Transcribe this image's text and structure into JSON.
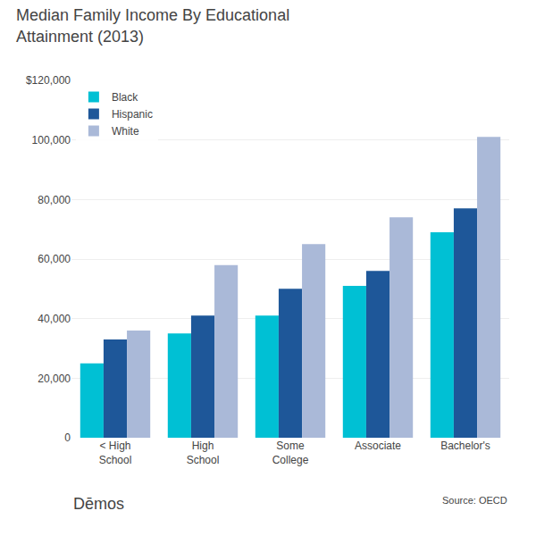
{
  "chart_data": {
    "type": "bar",
    "title": "Median Family Income By Educational\nAttainment (2013)",
    "categories": [
      "< High\nSchool",
      "High\nSchool",
      "Some\nCollege",
      "Associate",
      "Bachelor's"
    ],
    "series": [
      {
        "name": "Black",
        "color": "#00c0d4",
        "values": [
          25000,
          35000,
          41000,
          51000,
          69000
        ]
      },
      {
        "name": "Hispanic",
        "color": "#1e5799",
        "values": [
          33000,
          41000,
          50000,
          56000,
          77000
        ]
      },
      {
        "name": "White",
        "color": "#aab9d8",
        "values": [
          36000,
          58000,
          65000,
          74000,
          101000
        ]
      }
    ],
    "ylim": [
      0,
      120000
    ],
    "yticks": [
      0,
      {
        "value": 20000,
        "label": "20,000"
      },
      {
        "value": 40000,
        "label": "40,000"
      },
      {
        "value": 60000,
        "label": "60,000"
      },
      {
        "value": 80000,
        "label": "80,000"
      },
      {
        "value": 100000,
        "label": "100,000"
      },
      {
        "value": 120000,
        "label": "$120,000"
      }
    ],
    "grid": true,
    "legend": "upper left",
    "annotations": [
      "Dēmos",
      "Source: OECD"
    ]
  }
}
